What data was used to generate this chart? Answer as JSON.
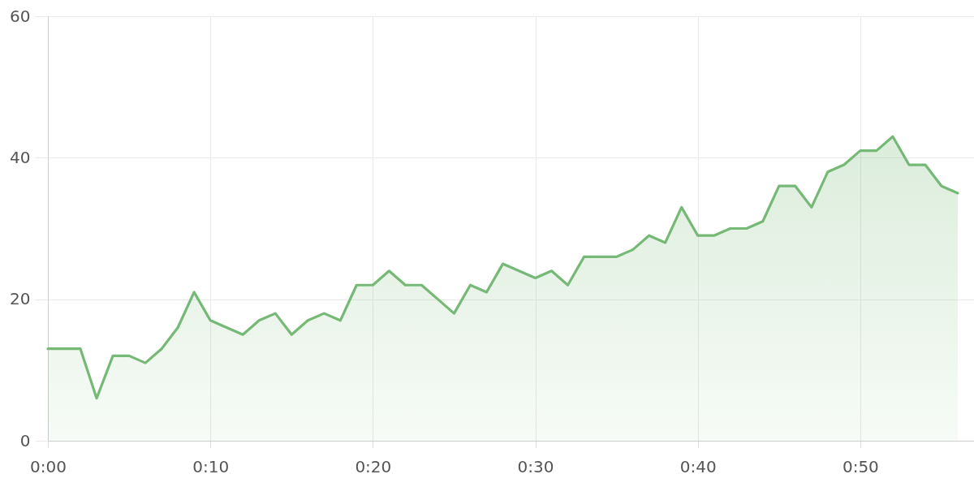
{
  "chart_data": {
    "type": "area",
    "x": [
      0,
      1,
      2,
      3,
      4,
      5,
      6,
      7,
      8,
      9,
      10,
      11,
      12,
      13,
      14,
      15,
      16,
      17,
      18,
      19,
      20,
      21,
      22,
      23,
      24,
      25,
      26,
      27,
      28,
      29,
      30,
      31,
      32,
      33,
      34,
      35,
      36,
      37,
      38,
      39,
      40,
      41,
      42,
      43,
      44,
      45,
      46,
      47,
      48,
      49,
      50,
      51,
      52,
      53,
      54,
      55,
      56
    ],
    "series": [
      {
        "color": "#76b976",
        "values": [
          13,
          13,
          13,
          6,
          12,
          12,
          11,
          13,
          16,
          21,
          17,
          16,
          15,
          17,
          18,
          15,
          17,
          18,
          17,
          22,
          22,
          24,
          22,
          22,
          20,
          18,
          22,
          21,
          25,
          24,
          23,
          24,
          22,
          26,
          26,
          26,
          27,
          29,
          28,
          33,
          29,
          29,
          30,
          30,
          31,
          36,
          36,
          33,
          38,
          39,
          41,
          41,
          43,
          39,
          39,
          36,
          35
        ]
      }
    ],
    "xlim": [
      0,
      57
    ],
    "xticks": [
      {
        "value": 0,
        "label": "0:00"
      },
      {
        "value": 10,
        "label": "0:10"
      },
      {
        "value": 20,
        "label": "0:20"
      },
      {
        "value": 30,
        "label": "0:30"
      },
      {
        "value": 40,
        "label": "0:40"
      },
      {
        "value": 50,
        "label": "0:50"
      }
    ],
    "ylim": [
      0,
      60
    ],
    "yticks": [
      0,
      20,
      40,
      60
    ],
    "grid": true
  }
}
